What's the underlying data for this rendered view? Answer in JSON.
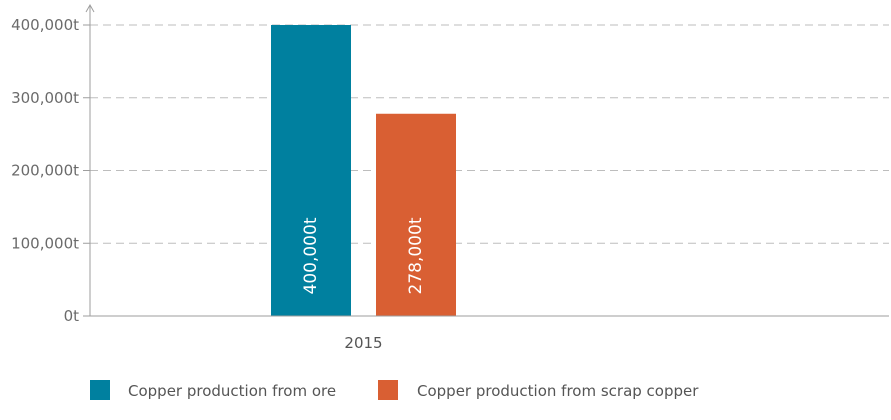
{
  "chart_data": {
    "type": "bar",
    "categories": [
      "2015"
    ],
    "series": [
      {
        "name": "Copper production from ore",
        "color": "#00809f",
        "values": [
          400000
        ],
        "label": "400,000t"
      },
      {
        "name": "Copper production from scrap copper",
        "color": "#d95f33",
        "values": [
          278000
        ],
        "label": "278,000t"
      }
    ],
    "yticks": [
      {
        "value": 0,
        "label": "0t"
      },
      {
        "value": 100000,
        "label": "100,000t"
      },
      {
        "value": 200000,
        "label": "200,000t"
      },
      {
        "value": 300000,
        "label": "300,000t"
      },
      {
        "value": 400000,
        "label": "400,000t"
      }
    ],
    "ylim": [
      0,
      400000
    ],
    "title": "",
    "xlabel": "",
    "ylabel": "",
    "grid": true,
    "legend_position": "bottom-left"
  }
}
